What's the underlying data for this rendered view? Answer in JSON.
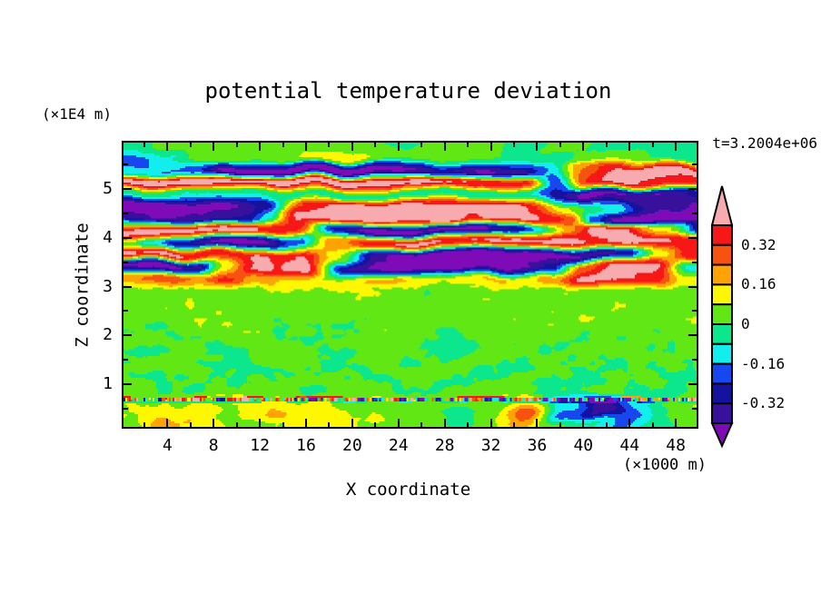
{
  "figure": {
    "title": "potential temperature deviation",
    "timestamp": "t=3.2004e+06",
    "x_axis": {
      "label": "X coordinate",
      "unit": "(×1000 m)",
      "range": [
        0.2,
        49.8
      ],
      "major_ticks": [
        4,
        8,
        12,
        16,
        20,
        24,
        28,
        32,
        36,
        40,
        44,
        48
      ],
      "minor_ticks": [
        2,
        6,
        10,
        14,
        18,
        22,
        26,
        30,
        34,
        38,
        42,
        46
      ]
    },
    "y_axis": {
      "label": "Z coordinate",
      "unit": "(×1E4 m)",
      "range": [
        0.125,
        5.95
      ],
      "major_ticks": [
        1,
        2,
        3,
        4,
        5
      ],
      "minor_ticks": [
        0.5,
        1.5,
        2.5,
        3.5,
        4.5,
        5.5
      ]
    },
    "colorbar": {
      "tick_labels": [
        "0.32",
        "0.16",
        "0",
        "-0.16",
        "-0.32"
      ],
      "segments_top_to_bottom": [
        "#f81717",
        "#f85211",
        "#ffa305",
        "#fdf802",
        "#61e713",
        "#0ce68d",
        "#12eded",
        "#1747ef",
        "#14129f",
        "#37109c"
      ],
      "over_arrow_color": "#f7abae",
      "under_arrow_color": "#7f0bb8",
      "outline_color": "#000000"
    }
  },
  "chart_data": {
    "type": "heatmap",
    "title": "potential temperature deviation",
    "xlabel": "X coordinate (×1000 m)",
    "ylabel": "Z coordinate (×1E4 m)",
    "time_label": "t=3.2004e+06",
    "x_range": [
      0.2,
      49.8
    ],
    "z_range": [
      0.125,
      5.95
    ],
    "levels": [
      -0.4,
      -0.32,
      -0.24,
      -0.16,
      -0.08,
      0,
      0.08,
      0.16,
      0.24,
      0.32,
      0.4
    ],
    "bin_colors_low_to_high": [
      "#37109c",
      "#14129f",
      "#1747ef",
      "#12eded",
      "#0ce68d",
      "#61e713",
      "#fdf802",
      "#ffa305",
      "#f85211",
      "#f81717"
    ],
    "under_color": "#7f0bb8",
    "over_color": "#f7abae",
    "grid": {
      "x": [
        0,
        3.125,
        6.25,
        9.375,
        12.5,
        15.625,
        18.75,
        21.875,
        25,
        28.125,
        31.25,
        34.375,
        37.5,
        40.625,
        43.75,
        46.875,
        50
      ],
      "z": [
        5.9,
        5.65,
        5.4,
        5.15,
        4.9,
        4.65,
        4.4,
        4.15,
        3.9,
        3.65,
        3.4,
        3.15,
        2.9,
        2.65,
        2.4,
        2.15,
        1.9,
        1.65,
        1.4,
        1.15,
        0.9,
        0.65,
        0.4,
        0.15
      ],
      "values": [
        [
          -0.06,
          0.04,
          0.03,
          0.05,
          0.04,
          0.02,
          0.04,
          0.04,
          -0.03,
          0.05,
          0.04,
          -0.03,
          0.04,
          -0.03,
          -0.05,
          -0.04,
          -0.02
        ],
        [
          -0.2,
          -0.1,
          0.03,
          0.05,
          0.05,
          0.08,
          0.13,
          0.04,
          0.04,
          0.05,
          0.02,
          -0.04,
          -0.04,
          0.02,
          0.05,
          -0.05,
          -0.03
        ],
        [
          -0.12,
          -0.15,
          -0.25,
          -0.45,
          -0.45,
          -0.48,
          -0.48,
          -0.45,
          -0.4,
          -0.3,
          -0.42,
          -0.35,
          -0.15,
          0.25,
          0.42,
          0.45,
          0.38
        ],
        [
          0.45,
          0.48,
          0.45,
          0.45,
          0.42,
          0.45,
          0.48,
          0.45,
          0.45,
          0.42,
          0.4,
          0.35,
          -0.2,
          0.35,
          0.42,
          0.4,
          0.3
        ],
        [
          -0.05,
          -0.06,
          -0.05,
          -0.08,
          -0.05,
          -0.04,
          -0.06,
          -0.05,
          -0.04,
          -0.05,
          -0.05,
          -0.06,
          -0.3,
          -0.45,
          -0.42,
          -0.4,
          -0.2
        ],
        [
          -0.45,
          -0.48,
          -0.45,
          -0.42,
          -0.3,
          0.3,
          0.45,
          0.48,
          0.48,
          0.45,
          0.45,
          0.42,
          0.1,
          -0.05,
          -0.1,
          -0.4,
          -0.45
        ],
        [
          -0.4,
          -0.42,
          -0.4,
          -0.3,
          -0.1,
          0.42,
          0.48,
          0.45,
          0.45,
          0.45,
          0.42,
          0.45,
          0.3,
          -0.2,
          -0.45,
          -0.48,
          -0.45
        ],
        [
          0.45,
          0.45,
          0.42,
          0.45,
          0.4,
          0.35,
          -0.3,
          -0.45,
          -0.45,
          -0.42,
          -0.45,
          -0.3,
          0.2,
          0.45,
          0.42,
          0.1,
          -0.3
        ],
        [
          0.1,
          -0.1,
          -0.3,
          -0.45,
          -0.4,
          -0.2,
          0.2,
          0.4,
          0.45,
          0.42,
          0.4,
          0.42,
          0.45,
          0.4,
          0.45,
          0.42,
          0.4
        ],
        [
          0.42,
          0.45,
          0.4,
          0.35,
          0.4,
          0.42,
          0.1,
          -0.35,
          -0.45,
          -0.48,
          -0.45,
          -0.42,
          -0.45,
          -0.4,
          -0.3,
          0.1,
          0.4
        ],
        [
          -0.42,
          -0.45,
          -0.35,
          0.1,
          0.4,
          0.45,
          -0.3,
          -0.45,
          -0.42,
          -0.45,
          -0.45,
          -0.4,
          -0.3,
          0.3,
          0.45,
          0.42,
          -0.1
        ],
        [
          0.2,
          0.3,
          0.25,
          0.35,
          0.2,
          0.15,
          0.1,
          0.2,
          0.15,
          0.1,
          0.15,
          0.1,
          0.2,
          0.45,
          0.42,
          0.35,
          0.1
        ],
        [
          0.04,
          0.05,
          0.04,
          0.06,
          0.05,
          0.04,
          0.05,
          0.06,
          0.04,
          0.05,
          0.04,
          0.05,
          0.06,
          0.05,
          0.04,
          0.05,
          0.04
        ],
        [
          0.05,
          0.04,
          0.06,
          0.05,
          0.03,
          0.05,
          0.04,
          0.05,
          0.06,
          0.04,
          0.05,
          0.04,
          0.05,
          0.04,
          0.06,
          0.05,
          0.04
        ],
        [
          0.04,
          0.05,
          0.03,
          0.04,
          0.06,
          0.05,
          0.04,
          0.03,
          0.05,
          0.04,
          0.06,
          0.05,
          0.04,
          0.05,
          0.03,
          0.04,
          0.05
        ],
        [
          0.03,
          -0.01,
          0.04,
          0.05,
          0.02,
          0.04,
          -0.01,
          0.03,
          0.05,
          0.04,
          0.02,
          0.04,
          0.05,
          0.03,
          0.04,
          0.02,
          0.04
        ],
        [
          0.04,
          0.03,
          -0.02,
          0.04,
          0.03,
          -0.02,
          0.04,
          0.05,
          0.02,
          -0.02,
          0.04,
          0.03,
          0.04,
          -0.02,
          0.03,
          0.04,
          0.03
        ],
        [
          0.02,
          -0.03,
          0.03,
          -0.02,
          0.04,
          0.02,
          -0.03,
          0.03,
          0.04,
          -0.02,
          0.02,
          0.03,
          -0.03,
          0.02,
          0.04,
          0.03,
          0.02
        ],
        [
          -0.02,
          0.03,
          0.02,
          -0.03,
          0.02,
          0.03,
          -0.02,
          0.02,
          -0.03,
          0.03,
          0.02,
          -0.02,
          0.03,
          0.02,
          -0.03,
          0.02,
          0.03
        ],
        [
          0.02,
          -0.02,
          0.03,
          0.02,
          -0.02,
          0.02,
          0.03,
          -0.02,
          0.02,
          0.03,
          -0.02,
          0.02,
          0.03,
          -0.02,
          0.02,
          0.03,
          -0.02
        ],
        [
          0.03,
          0.02,
          -0.02,
          0.03,
          0.02,
          -0.02,
          0.03,
          0.02,
          -0.02,
          0.02,
          0.03,
          0.02,
          -0.02,
          0.03,
          0.02,
          -0.02,
          0.02
        ],
        [
          0.06,
          0.1,
          0.06,
          0.08,
          0.12,
          0.08,
          0.06,
          0.08,
          0.04,
          0.06,
          0.1,
          0.08,
          -0.15,
          -0.35,
          -0.12,
          0.0,
          0.08
        ],
        [
          0.08,
          0.18,
          0.1,
          0.06,
          0.16,
          0.14,
          0.1,
          0.05,
          0.04,
          -0.02,
          0.05,
          0.28,
          -0.2,
          -0.38,
          -0.2,
          -0.02,
          0.06
        ],
        [
          0.05,
          0.22,
          0.16,
          0.05,
          0.04,
          0.1,
          0.14,
          0.06,
          0.03,
          -0.03,
          0.05,
          0.18,
          0.02,
          -0.08,
          -0.18,
          -0.05,
          0.08
        ]
      ]
    },
    "texture": {
      "warp_x": 1.3,
      "warp_z": 0.07,
      "band_noise": 0.05,
      "cap_noise": 0.035,
      "mid_noise": 0.045,
      "speckle": 0.03,
      "bottom_noise": 0.05,
      "dot_line_z": [
        0.655,
        0.705
      ],
      "dot_line_amp": 1.1,
      "blue_dash_z": [
        0.61,
        0.655
      ],
      "blue_dash_amp": -0.13,
      "red_dash_z": [
        0.705,
        0.745
      ],
      "red_dash_amp": 0.3
    },
    "legend_position": "right",
    "grid_lines": false
  },
  "layout_colors": {
    "axis": "#000000",
    "text": "#000000",
    "background": "#ffffff"
  }
}
